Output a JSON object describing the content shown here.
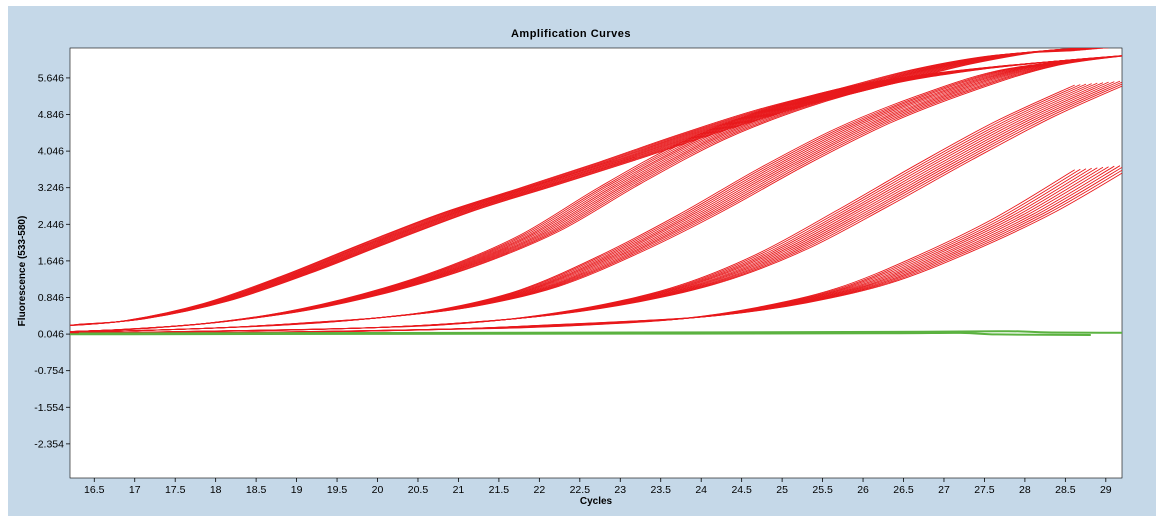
{
  "chart_data": {
    "type": "line",
    "title": "Amplification Curves",
    "xlabel": "Cycles",
    "ylabel": "Fluorescence (533-580)",
    "xlim": [
      16.2,
      29.2
    ],
    "ylim": [
      -3.1,
      6.3
    ],
    "x_ticks": [
      "16.5",
      "17",
      "17.5",
      "18",
      "18.5",
      "19",
      "19.5",
      "20",
      "20.5",
      "21",
      "21.5",
      "22",
      "22.5",
      "23",
      "23.5",
      "24",
      "24.5",
      "25",
      "25.5",
      "26",
      "26.5",
      "27",
      "27.5",
      "28",
      "28.5",
      "29"
    ],
    "y_ticks": [
      "5.646",
      "4.846",
      "4.046",
      "3.246",
      "2.446",
      "1.646",
      "0.846",
      "0.046",
      "-0.754",
      "-1.554",
      "-2.354"
    ],
    "grid": false,
    "legend": "none",
    "series_groups": [
      {
        "color": "#e8191c",
        "count": 12,
        "points": [
          [
            16.2,
            0.24
          ],
          [
            17,
            0.36
          ],
          [
            18,
            0.74
          ],
          [
            19,
            1.35
          ],
          [
            20,
            2.05
          ],
          [
            21,
            2.72
          ],
          [
            22,
            3.28
          ],
          [
            23,
            3.85
          ],
          [
            24,
            4.45
          ],
          [
            25,
            5.0
          ],
          [
            26,
            5.45
          ],
          [
            27,
            5.9
          ],
          [
            28,
            6.2
          ],
          [
            29,
            6.3
          ]
        ]
      },
      {
        "color": "#e8191c",
        "count": 12,
        "points": [
          [
            16.2,
            0.1
          ],
          [
            17,
            0.16
          ],
          [
            18,
            0.3
          ],
          [
            19,
            0.55
          ],
          [
            20,
            0.95
          ],
          [
            21,
            1.5
          ],
          [
            22,
            2.25
          ],
          [
            23,
            3.3
          ],
          [
            24,
            4.25
          ],
          [
            25,
            4.95
          ],
          [
            26,
            5.45
          ],
          [
            27,
            5.75
          ],
          [
            28,
            5.95
          ],
          [
            29,
            6.1
          ]
        ]
      },
      {
        "color": "#e8191c",
        "count": 12,
        "points": [
          [
            16.2,
            0.08
          ],
          [
            17,
            0.12
          ],
          [
            18,
            0.18
          ],
          [
            19,
            0.27
          ],
          [
            20,
            0.4
          ],
          [
            21,
            0.62
          ],
          [
            22,
            1.05
          ],
          [
            23,
            1.8
          ],
          [
            24,
            2.7
          ],
          [
            25,
            3.7
          ],
          [
            26,
            4.6
          ],
          [
            27,
            5.3
          ],
          [
            28,
            5.85
          ],
          [
            29,
            6.1
          ]
        ]
      },
      {
        "color": "#e8191c",
        "count": 12,
        "points": [
          [
            16.2,
            0.06
          ],
          [
            17,
            0.08
          ],
          [
            18,
            0.11
          ],
          [
            19,
            0.14
          ],
          [
            20,
            0.19
          ],
          [
            21,
            0.28
          ],
          [
            22,
            0.44
          ],
          [
            23,
            0.72
          ],
          [
            24,
            1.15
          ],
          [
            25,
            1.85
          ],
          [
            26,
            2.8
          ],
          [
            27,
            3.8
          ],
          [
            28,
            4.75
          ],
          [
            29,
            5.55
          ]
        ]
      },
      {
        "color": "#e8191c",
        "count": 12,
        "points": [
          [
            16.2,
            0.05
          ],
          [
            17,
            0.06
          ],
          [
            18,
            0.07
          ],
          [
            19,
            0.09
          ],
          [
            20,
            0.12
          ],
          [
            21,
            0.16
          ],
          [
            22,
            0.22
          ],
          [
            23,
            0.3
          ],
          [
            24,
            0.42
          ],
          [
            25,
            0.68
          ],
          [
            26,
            1.1
          ],
          [
            27,
            1.8
          ],
          [
            28,
            2.65
          ],
          [
            29,
            3.7
          ]
        ]
      },
      {
        "color": "#5bb240",
        "count": 2,
        "points": [
          [
            16.2,
            0.05
          ],
          [
            20,
            0.06
          ],
          [
            24,
            0.07
          ],
          [
            26.5,
            0.08
          ],
          [
            27.5,
            0.09
          ],
          [
            28,
            0.06
          ],
          [
            29.2,
            0.05
          ]
        ]
      }
    ]
  }
}
